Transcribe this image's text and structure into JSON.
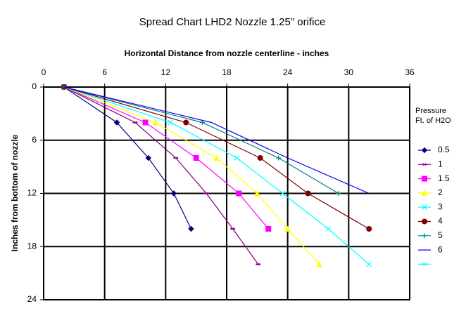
{
  "chart_data": {
    "type": "line",
    "title": "Spread Chart LHD2 Nozzle 1.25\" orifice",
    "x_label": "Horizontal Distance from nozzle centerline - inches",
    "y_label": "Inches from bottom of nozzle",
    "legend_title": [
      "Pressure",
      "Ft. of H2O"
    ],
    "xlim": [
      0,
      36
    ],
    "xticks": [
      0,
      6,
      12,
      18,
      24,
      30,
      36
    ],
    "ylim": [
      0,
      24
    ],
    "yticks": [
      0,
      6,
      12,
      18,
      24
    ],
    "y_inverted": true,
    "x_axis_position": "top",
    "grid": true,
    "legend_position": "right",
    "series": [
      {
        "name": "0.5",
        "color": "#000080",
        "marker": "diamond",
        "x": [
          2,
          7.2,
          10.3,
          12.8,
          14.5
        ],
        "values": [
          0,
          4,
          8,
          12,
          16
        ]
      },
      {
        "name": "1",
        "color": "#800080",
        "marker": "dash",
        "x": [
          2,
          9,
          13,
          16,
          18.6,
          21.1
        ],
        "values": [
          0,
          4,
          8,
          12,
          16,
          20
        ]
      },
      {
        "name": "1.5",
        "color": "#ff00ff",
        "marker": "square",
        "x": [
          2,
          10,
          15,
          19.2,
          22.1
        ],
        "values": [
          0,
          4,
          8,
          12,
          16
        ]
      },
      {
        "name": "2",
        "color": "#ffff00",
        "marker": "triangle",
        "x": [
          2,
          11,
          17,
          21,
          24,
          27.1
        ],
        "values": [
          0,
          4,
          8,
          12,
          16,
          20
        ]
      },
      {
        "name": "3",
        "color": "#00ffff",
        "marker": "cross",
        "x": [
          2,
          12.5,
          19,
          23.5,
          28,
          32
        ],
        "values": [
          0,
          4,
          8,
          12,
          16,
          20
        ]
      },
      {
        "name": "4",
        "color": "#800000",
        "marker": "circle",
        "x": [
          2,
          14,
          21.3,
          26,
          32
        ],
        "values": [
          0,
          4,
          8,
          12,
          16
        ]
      },
      {
        "name": "5",
        "color": "#008080",
        "marker": "plus",
        "x": [
          2,
          15.6,
          23.1,
          29
        ],
        "values": [
          0,
          4,
          8,
          12
        ]
      },
      {
        "name": "6",
        "color": "#0000ff",
        "marker": "none",
        "x": [
          2,
          16.5,
          24,
          32
        ],
        "values": [
          0,
          4,
          8,
          12
        ]
      },
      {
        "name": null,
        "color": "#00ffff",
        "marker": "dash",
        "x": [],
        "values": []
      }
    ]
  }
}
